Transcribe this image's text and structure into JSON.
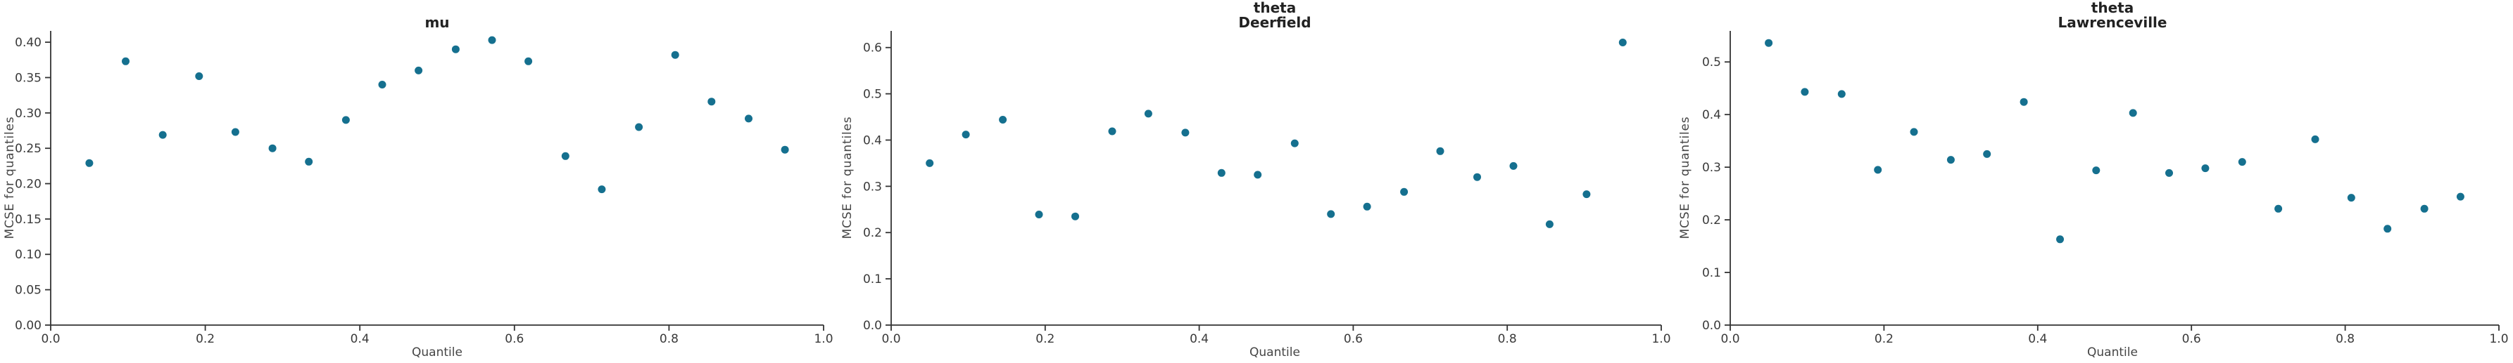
{
  "figure": {
    "background": "#ffffff",
    "point_color": "#15708f",
    "spine_color": "#333333",
    "tick_label_color": "#3a3a3a",
    "axis_label_color": "#454545",
    "title_color": "#222222"
  },
  "chart_data": [
    {
      "type": "scatter",
      "title": "mu",
      "title_lines": [
        "mu"
      ],
      "xlabel": "Quantile",
      "ylabel": "MCSE for quantiles",
      "xlim": [
        0.0,
        1.0
      ],
      "ylim": [
        0.0,
        0.416
      ],
      "grid": false,
      "legend": "none",
      "x_ticks": [
        0.0,
        0.2,
        0.4,
        0.6,
        0.8,
        1.0
      ],
      "x_tick_labels": [
        "0.0",
        "0.2",
        "0.4",
        "0.6",
        "0.8",
        "1.0"
      ],
      "y_ticks": [
        0.0,
        0.05,
        0.1,
        0.15,
        0.2,
        0.25,
        0.3,
        0.35,
        0.4
      ],
      "y_tick_labels": [
        "0.00",
        "0.05",
        "0.10",
        "0.15",
        "0.20",
        "0.25",
        "0.30",
        "0.35",
        "0.40"
      ],
      "x": [
        0.05,
        0.097,
        0.145,
        0.192,
        0.239,
        0.287,
        0.334,
        0.382,
        0.429,
        0.476,
        0.524,
        0.571,
        0.618,
        0.666,
        0.713,
        0.761,
        0.808,
        0.855,
        0.903,
        0.95
      ],
      "y": [
        0.229,
        0.373,
        0.269,
        0.352,
        0.273,
        0.25,
        0.231,
        0.29,
        0.34,
        0.36,
        0.39,
        0.403,
        0.373,
        0.239,
        0.192,
        0.28,
        0.382,
        0.316,
        0.292,
        0.248
      ]
    },
    {
      "type": "scatter",
      "title": "theta Deerfield",
      "title_lines": [
        "theta",
        "Deerfield"
      ],
      "xlabel": "Quantile",
      "ylabel": "MCSE for quantiles",
      "xlim": [
        0.0,
        1.0
      ],
      "ylim": [
        0.0,
        0.636
      ],
      "grid": false,
      "legend": "none",
      "x_ticks": [
        0.0,
        0.2,
        0.4,
        0.6,
        0.8,
        1.0
      ],
      "x_tick_labels": [
        "0.0",
        "0.2",
        "0.4",
        "0.6",
        "0.8",
        "1.0"
      ],
      "y_ticks": [
        0.0,
        0.1,
        0.2,
        0.3,
        0.4,
        0.5,
        0.6
      ],
      "y_tick_labels": [
        "0.0",
        "0.1",
        "0.2",
        "0.3",
        "0.4",
        "0.5",
        "0.6"
      ],
      "x": [
        0.05,
        0.097,
        0.145,
        0.192,
        0.239,
        0.287,
        0.334,
        0.382,
        0.429,
        0.476,
        0.524,
        0.571,
        0.618,
        0.666,
        0.713,
        0.761,
        0.808,
        0.855,
        0.903,
        0.95
      ],
      "y": [
        0.35,
        0.412,
        0.444,
        0.239,
        0.235,
        0.419,
        0.457,
        0.416,
        0.329,
        0.325,
        0.393,
        0.24,
        0.256,
        0.288,
        0.376,
        0.32,
        0.344,
        0.218,
        0.283,
        0.611
      ]
    },
    {
      "type": "scatter",
      "title": "theta Lawrenceville",
      "title_lines": [
        "theta",
        "Lawrenceville"
      ],
      "xlabel": "Quantile",
      "ylabel": "MCSE for quantiles",
      "xlim": [
        0.0,
        1.0
      ],
      "ylim": [
        0.0,
        0.559
      ],
      "grid": false,
      "legend": "none",
      "x_ticks": [
        0.0,
        0.2,
        0.4,
        0.6,
        0.8,
        1.0
      ],
      "x_tick_labels": [
        "0.0",
        "0.2",
        "0.4",
        "0.6",
        "0.8",
        "1.0"
      ],
      "y_ticks": [
        0.0,
        0.1,
        0.2,
        0.3,
        0.4,
        0.5
      ],
      "y_tick_labels": [
        "0.0",
        "0.1",
        "0.2",
        "0.3",
        "0.4",
        "0.5"
      ],
      "x": [
        0.05,
        0.097,
        0.145,
        0.192,
        0.239,
        0.287,
        0.334,
        0.382,
        0.429,
        0.476,
        0.524,
        0.571,
        0.618,
        0.666,
        0.713,
        0.761,
        0.808,
        0.855,
        0.903,
        0.95
      ],
      "y": [
        0.536,
        0.443,
        0.439,
        0.295,
        0.367,
        0.314,
        0.325,
        0.424,
        0.163,
        0.294,
        0.403,
        0.289,
        0.298,
        0.31,
        0.221,
        0.353,
        0.242,
        0.183,
        0.221,
        0.244
      ]
    }
  ]
}
